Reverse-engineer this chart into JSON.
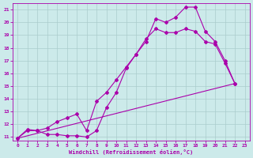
{
  "background_color": "#cceaea",
  "grid_color": "#aacccc",
  "line_color": "#aa00aa",
  "xlabel": "Windchill (Refroidissement éolien,°C)",
  "xlim": [
    -0.5,
    23.5
  ],
  "ylim": [
    10.7,
    21.5
  ],
  "yticks": [
    11,
    12,
    13,
    14,
    15,
    16,
    17,
    18,
    19,
    20,
    21
  ],
  "xticks": [
    0,
    1,
    2,
    3,
    4,
    5,
    6,
    7,
    8,
    9,
    10,
    11,
    12,
    13,
    14,
    15,
    16,
    17,
    18,
    19,
    20,
    21,
    22,
    23
  ],
  "line1_x": [
    0,
    1,
    2,
    3,
    4,
    5,
    6,
    7,
    8,
    9,
    10,
    11,
    12,
    13,
    14,
    15,
    16,
    17,
    18,
    19,
    20,
    21,
    22
  ],
  "line1_y": [
    10.9,
    11.6,
    11.5,
    11.2,
    11.2,
    11.1,
    11.1,
    11.0,
    11.5,
    13.3,
    14.5,
    16.4,
    17.5,
    18.5,
    20.3,
    20.0,
    20.4,
    21.2,
    21.2,
    19.3,
    18.5,
    17.0,
    15.2
  ],
  "line2_x": [
    0,
    1,
    2,
    3,
    4,
    5,
    6,
    7,
    8,
    9,
    10,
    11,
    12,
    13,
    14,
    15,
    16,
    17,
    18,
    19,
    20,
    21,
    22
  ],
  "line2_y": [
    10.9,
    11.5,
    11.5,
    11.7,
    12.2,
    12.5,
    12.8,
    11.5,
    13.8,
    14.5,
    15.5,
    16.5,
    17.5,
    18.7,
    19.5,
    19.2,
    19.2,
    19.5,
    19.3,
    18.5,
    18.3,
    16.8,
    15.2
  ],
  "line3_x": [
    0,
    22
  ],
  "line3_y": [
    10.9,
    15.2
  ]
}
